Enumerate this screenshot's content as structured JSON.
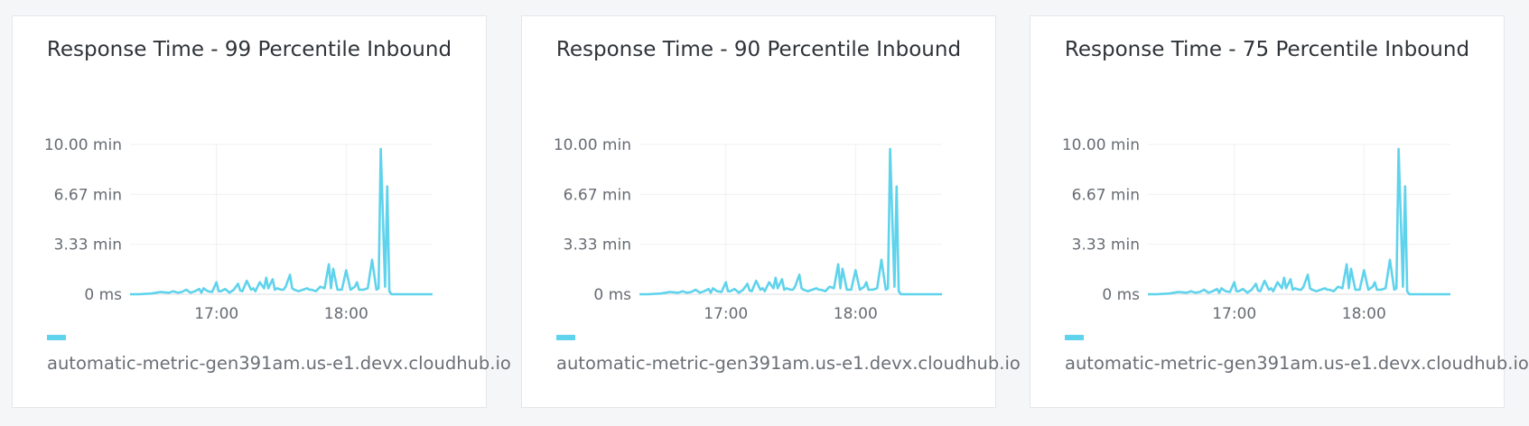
{
  "chart_data": [
    {
      "type": "line",
      "title": "Response Time - 99 Percentile Inbound",
      "y_ticks": [
        "0 ms",
        "3.33 min",
        "6.67 min",
        "10.00 min"
      ],
      "ylim": [
        0,
        10.0
      ],
      "yunit": "min",
      "x_ticks": [
        "17:00",
        "18:00"
      ],
      "x_tick_positions_min": [
        1020,
        1080
      ],
      "xlim_min": [
        980,
        1120
      ],
      "grid": true,
      "legend": "bottom-left",
      "series": [
        {
          "name": "automatic-metric-gen391am.us-e1.devx.cloudhub.io",
          "color": "#5fd3ec",
          "x": [
            980,
            984,
            990,
            994,
            998,
            1000,
            1002,
            1004,
            1006,
            1008,
            1010,
            1012,
            1013,
            1014,
            1016,
            1018,
            1020,
            1021,
            1022,
            1024,
            1026,
            1028,
            1030,
            1031,
            1032,
            1034,
            1036,
            1037,
            1038,
            1040,
            1042,
            1043,
            1044,
            1046,
            1047,
            1048,
            1050,
            1051,
            1052,
            1054,
            1055,
            1056,
            1058,
            1060,
            1062,
            1063,
            1064,
            1066,
            1068,
            1070,
            1072,
            1073,
            1074,
            1076,
            1078,
            1080,
            1082,
            1084,
            1085,
            1086,
            1088,
            1090,
            1092,
            1094,
            1095,
            1096,
            1098,
            1099,
            1100,
            1101,
            1102,
            1103,
            1104,
            1105,
            1106,
            1108,
            1110,
            1112,
            1114,
            1116,
            1118,
            1120
          ],
          "y": [
            0.0,
            0.0,
            0.05,
            0.15,
            0.1,
            0.2,
            0.1,
            0.15,
            0.3,
            0.1,
            0.2,
            0.35,
            0.1,
            0.4,
            0.2,
            0.15,
            0.8,
            0.2,
            0.2,
            0.35,
            0.1,
            0.3,
            0.7,
            0.25,
            0.2,
            0.9,
            0.3,
            0.4,
            0.2,
            0.8,
            0.4,
            1.1,
            0.4,
            1.0,
            0.3,
            0.4,
            0.3,
            0.3,
            0.5,
            1.3,
            0.4,
            0.3,
            0.2,
            0.3,
            0.4,
            0.3,
            0.3,
            0.2,
            0.5,
            0.4,
            2.0,
            0.4,
            1.7,
            0.3,
            0.3,
            1.6,
            0.3,
            0.5,
            0.8,
            0.3,
            0.3,
            0.4,
            2.3,
            0.3,
            0.4,
            9.7,
            0.5,
            7.2,
            0.2,
            0.0,
            0.0,
            0.0,
            0.0,
            0.0,
            0.0,
            0.0,
            0.0,
            0.0,
            0.0,
            0.0,
            0.0,
            0.0
          ]
        }
      ]
    },
    {
      "type": "line",
      "title": "Response Time - 90 Percentile Inbound",
      "y_ticks": [
        "0 ms",
        "3.33 min",
        "6.67 min",
        "10.00 min"
      ],
      "ylim": [
        0,
        10.0
      ],
      "yunit": "min",
      "x_ticks": [
        "17:00",
        "18:00"
      ],
      "x_tick_positions_min": [
        1020,
        1080
      ],
      "xlim_min": [
        980,
        1120
      ],
      "grid": true,
      "legend": "bottom-left",
      "series": [
        {
          "name": "automatic-metric-gen391am.us-e1.devx.cloudhub.io",
          "color": "#5fd3ec",
          "x": [
            980,
            984,
            990,
            994,
            998,
            1000,
            1002,
            1004,
            1006,
            1008,
            1010,
            1012,
            1013,
            1014,
            1016,
            1018,
            1020,
            1021,
            1022,
            1024,
            1026,
            1028,
            1030,
            1031,
            1032,
            1034,
            1036,
            1037,
            1038,
            1040,
            1042,
            1043,
            1044,
            1046,
            1047,
            1048,
            1050,
            1051,
            1052,
            1054,
            1055,
            1056,
            1058,
            1060,
            1062,
            1063,
            1064,
            1066,
            1068,
            1070,
            1072,
            1073,
            1074,
            1076,
            1078,
            1080,
            1082,
            1084,
            1085,
            1086,
            1088,
            1090,
            1092,
            1094,
            1095,
            1096,
            1098,
            1099,
            1100,
            1101,
            1102,
            1103,
            1104,
            1105,
            1106,
            1108,
            1110,
            1112,
            1114,
            1116,
            1118,
            1120
          ],
          "y": [
            0.0,
            0.0,
            0.05,
            0.15,
            0.1,
            0.2,
            0.1,
            0.15,
            0.3,
            0.1,
            0.2,
            0.35,
            0.1,
            0.4,
            0.2,
            0.15,
            0.8,
            0.2,
            0.2,
            0.35,
            0.1,
            0.3,
            0.7,
            0.25,
            0.2,
            0.9,
            0.3,
            0.4,
            0.2,
            0.8,
            0.4,
            1.1,
            0.4,
            1.0,
            0.3,
            0.4,
            0.3,
            0.3,
            0.5,
            1.3,
            0.4,
            0.3,
            0.2,
            0.3,
            0.4,
            0.3,
            0.3,
            0.2,
            0.5,
            0.4,
            2.0,
            0.4,
            1.7,
            0.3,
            0.3,
            1.6,
            0.3,
            0.5,
            0.8,
            0.3,
            0.3,
            0.4,
            2.3,
            0.3,
            0.4,
            9.7,
            0.5,
            7.2,
            0.2,
            0.0,
            0.0,
            0.0,
            0.0,
            0.0,
            0.0,
            0.0,
            0.0,
            0.0,
            0.0,
            0.0,
            0.0,
            0.0
          ]
        }
      ]
    },
    {
      "type": "line",
      "title": "Response Time - 75 Percentile Inbound",
      "y_ticks": [
        "0 ms",
        "3.33 min",
        "6.67 min",
        "10.00 min"
      ],
      "ylim": [
        0,
        10.0
      ],
      "yunit": "min",
      "x_ticks": [
        "17:00",
        "18:00"
      ],
      "x_tick_positions_min": [
        1020,
        1080
      ],
      "xlim_min": [
        980,
        1120
      ],
      "grid": true,
      "legend": "bottom-left",
      "series": [
        {
          "name": "automatic-metric-gen391am.us-e1.devx.cloudhub.io",
          "color": "#5fd3ec",
          "x": [
            980,
            984,
            990,
            994,
            998,
            1000,
            1002,
            1004,
            1006,
            1008,
            1010,
            1012,
            1013,
            1014,
            1016,
            1018,
            1020,
            1021,
            1022,
            1024,
            1026,
            1028,
            1030,
            1031,
            1032,
            1034,
            1036,
            1037,
            1038,
            1040,
            1042,
            1043,
            1044,
            1046,
            1047,
            1048,
            1050,
            1051,
            1052,
            1054,
            1055,
            1056,
            1058,
            1060,
            1062,
            1063,
            1064,
            1066,
            1068,
            1070,
            1072,
            1073,
            1074,
            1076,
            1078,
            1080,
            1082,
            1084,
            1085,
            1086,
            1088,
            1090,
            1092,
            1094,
            1095,
            1096,
            1098,
            1099,
            1100,
            1101,
            1102,
            1103,
            1104,
            1105,
            1106,
            1108,
            1110,
            1112,
            1114,
            1116,
            1118,
            1120
          ],
          "y": [
            0.0,
            0.0,
            0.05,
            0.15,
            0.1,
            0.2,
            0.1,
            0.15,
            0.3,
            0.1,
            0.2,
            0.35,
            0.1,
            0.4,
            0.2,
            0.15,
            0.8,
            0.2,
            0.2,
            0.35,
            0.1,
            0.3,
            0.7,
            0.25,
            0.2,
            0.9,
            0.3,
            0.4,
            0.2,
            0.8,
            0.4,
            1.1,
            0.4,
            1.0,
            0.3,
            0.4,
            0.3,
            0.3,
            0.5,
            1.3,
            0.4,
            0.3,
            0.2,
            0.3,
            0.4,
            0.3,
            0.3,
            0.2,
            0.5,
            0.4,
            2.0,
            0.4,
            1.7,
            0.3,
            0.3,
            1.6,
            0.3,
            0.5,
            0.8,
            0.3,
            0.3,
            0.4,
            2.3,
            0.3,
            0.4,
            9.7,
            0.5,
            7.2,
            0.2,
            0.0,
            0.0,
            0.0,
            0.0,
            0.0,
            0.0,
            0.0,
            0.0,
            0.0,
            0.0,
            0.0,
            0.0,
            0.0
          ]
        }
      ]
    }
  ]
}
